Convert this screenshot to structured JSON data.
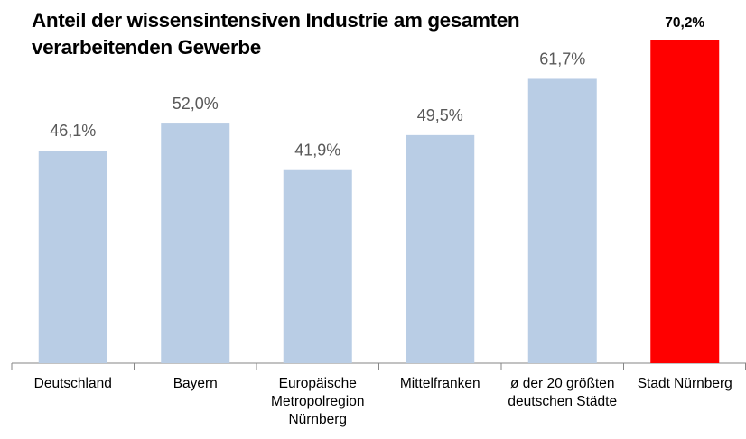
{
  "chart_data": {
    "type": "bar",
    "title": "Anteil der wissensintensiven Industrie am gesamten verarbeitenden Gewerbe",
    "categories": [
      "Deutschland",
      "Bayern",
      "Europäische\nMetropolregion\nNürnberg",
      "Mittelfranken",
      "ø der 20 größten\ndeutschen Städte",
      "Stadt Nürnberg"
    ],
    "values": [
      46.1,
      52.0,
      41.9,
      49.5,
      61.7,
      70.2
    ],
    "value_labels": [
      "46,1%",
      "52,0%",
      "41,9%",
      "49,5%",
      "61,7%",
      "70,2%"
    ],
    "colors": [
      "#b9cde5",
      "#b9cde5",
      "#b9cde5",
      "#b9cde5",
      "#b9cde5",
      "#ff0000"
    ]
  }
}
